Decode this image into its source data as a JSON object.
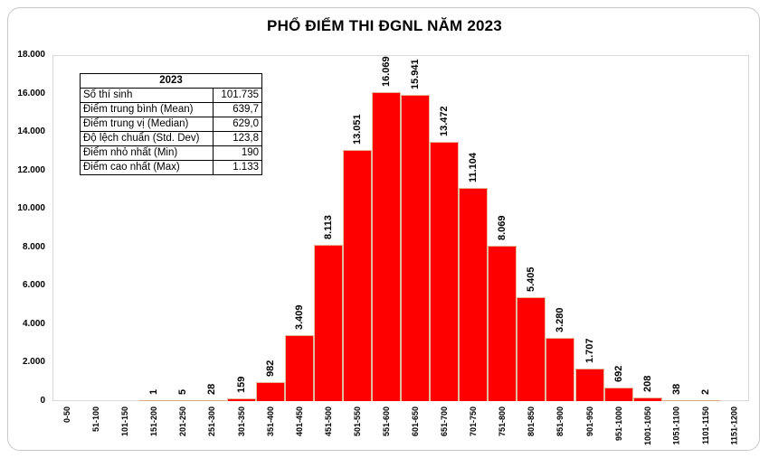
{
  "chart_data": {
    "type": "bar",
    "title": "PHỔ ĐIỂM THI ĐGNL NĂM 2023",
    "xlabel": "",
    "ylabel": "",
    "ylim": [
      0,
      18000
    ],
    "yticks": [
      "0",
      "2.000",
      "4.000",
      "6.000",
      "8.000",
      "10.000",
      "12.000",
      "14.000",
      "16.000",
      "18.000"
    ],
    "grid": false,
    "legend": null,
    "categories": [
      "0-50",
      "51-100",
      "101-150",
      "151-200",
      "201-250",
      "251-300",
      "301-350",
      "351-400",
      "401-450",
      "451-500",
      "501-550",
      "551-600",
      "601-650",
      "651-700",
      "701-750",
      "751-800",
      "801-850",
      "851-900",
      "901-950",
      "951-1000",
      "1001-1050",
      "1051-1100",
      "1101-1150",
      "1151-1200"
    ],
    "values": [
      0,
      0,
      0,
      1,
      5,
      28,
      159,
      982,
      3409,
      8113,
      13051,
      16069,
      15941,
      13472,
      11104,
      8069,
      5405,
      3280,
      1707,
      692,
      208,
      38,
      2,
      0
    ],
    "data_labels": [
      "",
      "",
      "",
      "1",
      "5",
      "28",
      "159",
      "982",
      "3.409",
      "8.113",
      "13.051",
      "16.069",
      "15.941",
      "13.472",
      "11.104",
      "8.069",
      "5.405",
      "3.280",
      "1.707",
      "692",
      "208",
      "38",
      "2",
      ""
    ],
    "bar_color": "#ff0000",
    "small_bar_color": "#f4c9a8",
    "summary_table": {
      "header": "2023",
      "rows": [
        {
          "label": "Số thí sinh",
          "value": "101.735"
        },
        {
          "label": "Điểm trung bình (Mean)",
          "value": "639,7"
        },
        {
          "label": "Điểm trung vị (Median)",
          "value": "629,0"
        },
        {
          "label": "Độ lệch chuẩn (Std. Dev)",
          "value": "123,8"
        },
        {
          "label": "Điểm nhỏ nhất (Min)",
          "value": "190"
        },
        {
          "label": "Điểm cao nhất (Max)",
          "value": "1.133"
        }
      ]
    }
  }
}
